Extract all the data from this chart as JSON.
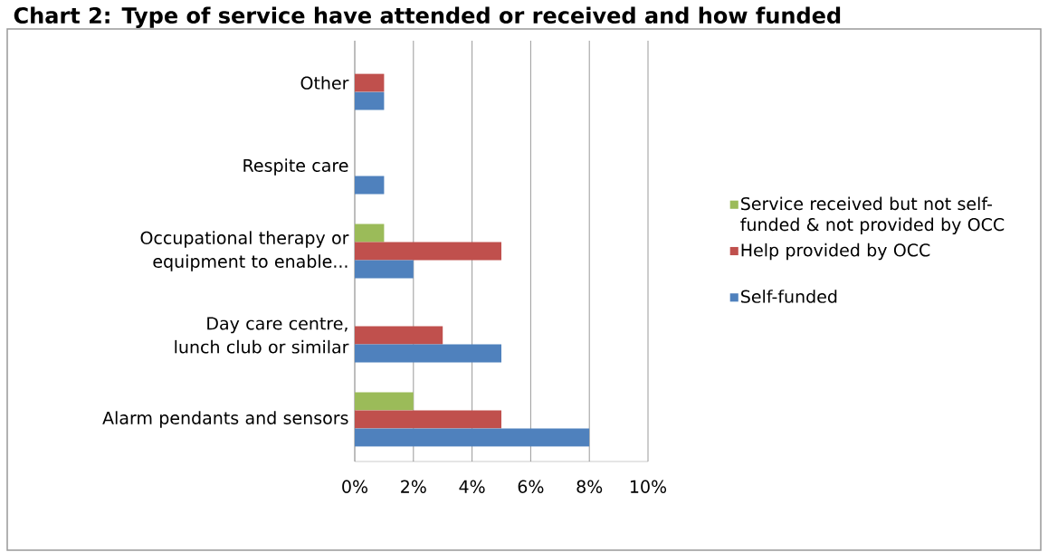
{
  "chart_data": {
    "type": "bar",
    "orientation": "horizontal",
    "title": "Chart 2: Type of service have attended or received and how funded",
    "categories": [
      "Other",
      "Respite care",
      "Occupational therapy or equipment to enable...",
      "Day care centre, lunch club or similar",
      "Alarm pendants and sensors"
    ],
    "series": [
      {
        "name": "Service received but not self-funded & not provided by OCC",
        "color": "#9bbb59",
        "values": [
          null,
          null,
          1,
          null,
          2
        ]
      },
      {
        "name": "Help provided by OCC",
        "color": "#c0504d",
        "values": [
          1,
          null,
          5,
          3,
          5
        ]
      },
      {
        "name": "Self-funded",
        "color": "#4f81bd",
        "values": [
          1,
          1,
          2,
          5,
          8
        ]
      }
    ],
    "xlim": [
      0,
      10
    ],
    "xticks": [
      {
        "value": 0,
        "label": "0%"
      },
      {
        "value": 2,
        "label": "2%"
      },
      {
        "value": 4,
        "label": "4%"
      },
      {
        "value": 6,
        "label": "6%"
      },
      {
        "value": 8,
        "label": "8%"
      },
      {
        "value": 10,
        "label": "10%"
      }
    ],
    "grid": "x",
    "legend": "right"
  }
}
